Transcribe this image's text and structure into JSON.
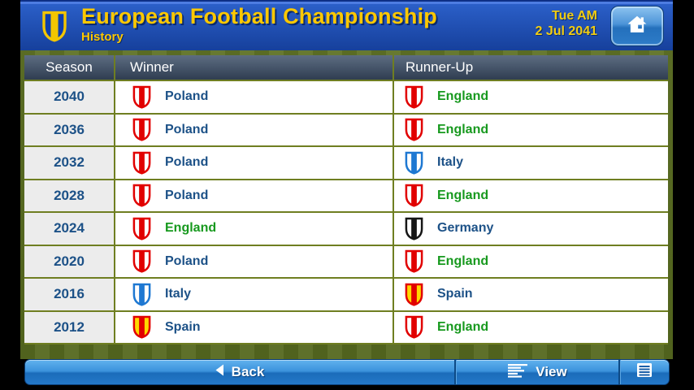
{
  "header": {
    "title": "European Football Championship",
    "subtitle": "History",
    "date_line1": "Tue AM",
    "date_line2": "2 Jul 2041"
  },
  "table": {
    "columns": [
      "Season",
      "Winner",
      "Runner-Up"
    ],
    "highlight_team": "England",
    "rows": [
      {
        "season": "2040",
        "winner": "Poland",
        "winner_flag": "poland",
        "runner_up": "England",
        "runner_up_flag": "england"
      },
      {
        "season": "2036",
        "winner": "Poland",
        "winner_flag": "poland",
        "runner_up": "England",
        "runner_up_flag": "england"
      },
      {
        "season": "2032",
        "winner": "Poland",
        "winner_flag": "poland",
        "runner_up": "Italy",
        "runner_up_flag": "italy"
      },
      {
        "season": "2028",
        "winner": "Poland",
        "winner_flag": "poland",
        "runner_up": "England",
        "runner_up_flag": "england"
      },
      {
        "season": "2024",
        "winner": "England",
        "winner_flag": "england",
        "runner_up": "Germany",
        "runner_up_flag": "germany"
      },
      {
        "season": "2020",
        "winner": "Poland",
        "winner_flag": "poland",
        "runner_up": "England",
        "runner_up_flag": "england"
      },
      {
        "season": "2016",
        "winner": "Italy",
        "winner_flag": "italy",
        "runner_up": "Spain",
        "runner_up_flag": "spain"
      },
      {
        "season": "2012",
        "winner": "Spain",
        "winner_flag": "spain",
        "runner_up": "England",
        "runner_up_flag": "england"
      }
    ]
  },
  "flags": {
    "poland": {
      "border": "#e10000",
      "background": "#ffffff",
      "stripe": "#e10000"
    },
    "england": {
      "border": "#e10000",
      "background": "#ffffff",
      "stripe": "#e10000"
    },
    "italy": {
      "border": "#1e78d2",
      "background": "#ffffff",
      "stripe": "#1e78d2"
    },
    "germany": {
      "border": "#161616",
      "background": "#ffffff",
      "stripe": "#161616"
    },
    "spain": {
      "border": "#e10000",
      "background": "#ffd800",
      "stripe": "#e10000"
    },
    "competition": {
      "border": "#f3c600",
      "background": "#0d3fae",
      "stripe": "#f3c600"
    }
  },
  "toolbar": {
    "back_label": "Back",
    "view_label": "View",
    "pages_icon": "pages-icon"
  },
  "colors": {
    "team_text": "#1c5187",
    "highlight_text": "#17991e",
    "title_yellow": "#fdc800"
  }
}
